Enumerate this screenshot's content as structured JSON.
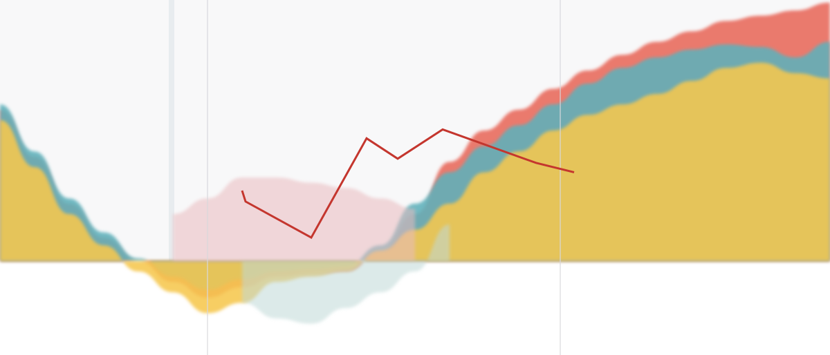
{
  "chart_data": {
    "type": "area",
    "title": "",
    "xlabel": "",
    "ylabel": "",
    "grid": false,
    "legend": "none",
    "baseline": 0,
    "x": [
      0,
      1,
      2,
      3,
      4,
      5,
      6,
      7,
      8,
      9,
      10,
      11,
      12,
      13,
      14,
      15,
      16,
      17,
      18,
      19,
      20,
      21,
      22,
      23,
      24
    ],
    "xlim": [
      0,
      24
    ],
    "ylim": [
      -180,
      500
    ],
    "series": [
      {
        "values": [
          270,
          180,
          90,
          30,
          -20,
          -60,
          -100,
          -80,
          -40,
          -30,
          -20,
          20,
          60,
          110,
          170,
          210,
          250,
          280,
          300,
          320,
          345,
          370,
          380,
          360,
          350
        ],
        "color": "#f6c74e"
      },
      {
        "values": [
          300,
          210,
          120,
          55,
          5,
          -30,
          -55,
          -35,
          -20,
          -15,
          -10,
          30,
          110,
          170,
          220,
          260,
          300,
          340,
          370,
          390,
          405,
          415,
          410,
          390,
          420
        ],
        "color": "#5fb1bb"
      },
      {
        "values": [
          290,
          200,
          110,
          45,
          0,
          -40,
          -70,
          -50,
          -30,
          -25,
          -20,
          15,
          90,
          190,
          250,
          290,
          330,
          365,
          395,
          420,
          440,
          460,
          470,
          480,
          495
        ],
        "color": "#e8685b"
      },
      {
        "values": [
          null,
          null,
          null,
          null,
          null,
          90,
          120,
          160,
          160,
          150,
          140,
          120,
          100,
          null,
          null,
          null,
          null,
          null,
          null,
          null,
          null,
          null,
          null,
          null,
          null
        ],
        "color": "#e9b9bd"
      },
      {
        "values": [
          null,
          null,
          null,
          null,
          null,
          null,
          null,
          -80,
          -110,
          -120,
          -90,
          -60,
          -20,
          70,
          null,
          null,
          null,
          null,
          null,
          null,
          null,
          null,
          null,
          null,
          null
        ],
        "color": "#bfd8d7"
      }
    ],
    "line_series": {
      "x": [
        7,
        7.1,
        9,
        10.6,
        11.5,
        12.8,
        15.5,
        16.6
      ],
      "values": [
        135,
        114,
        45,
        235,
        196,
        252,
        188,
        170
      ],
      "color": "#c4362e"
    },
    "vertical_markers": [
      6,
      16.2
    ]
  }
}
